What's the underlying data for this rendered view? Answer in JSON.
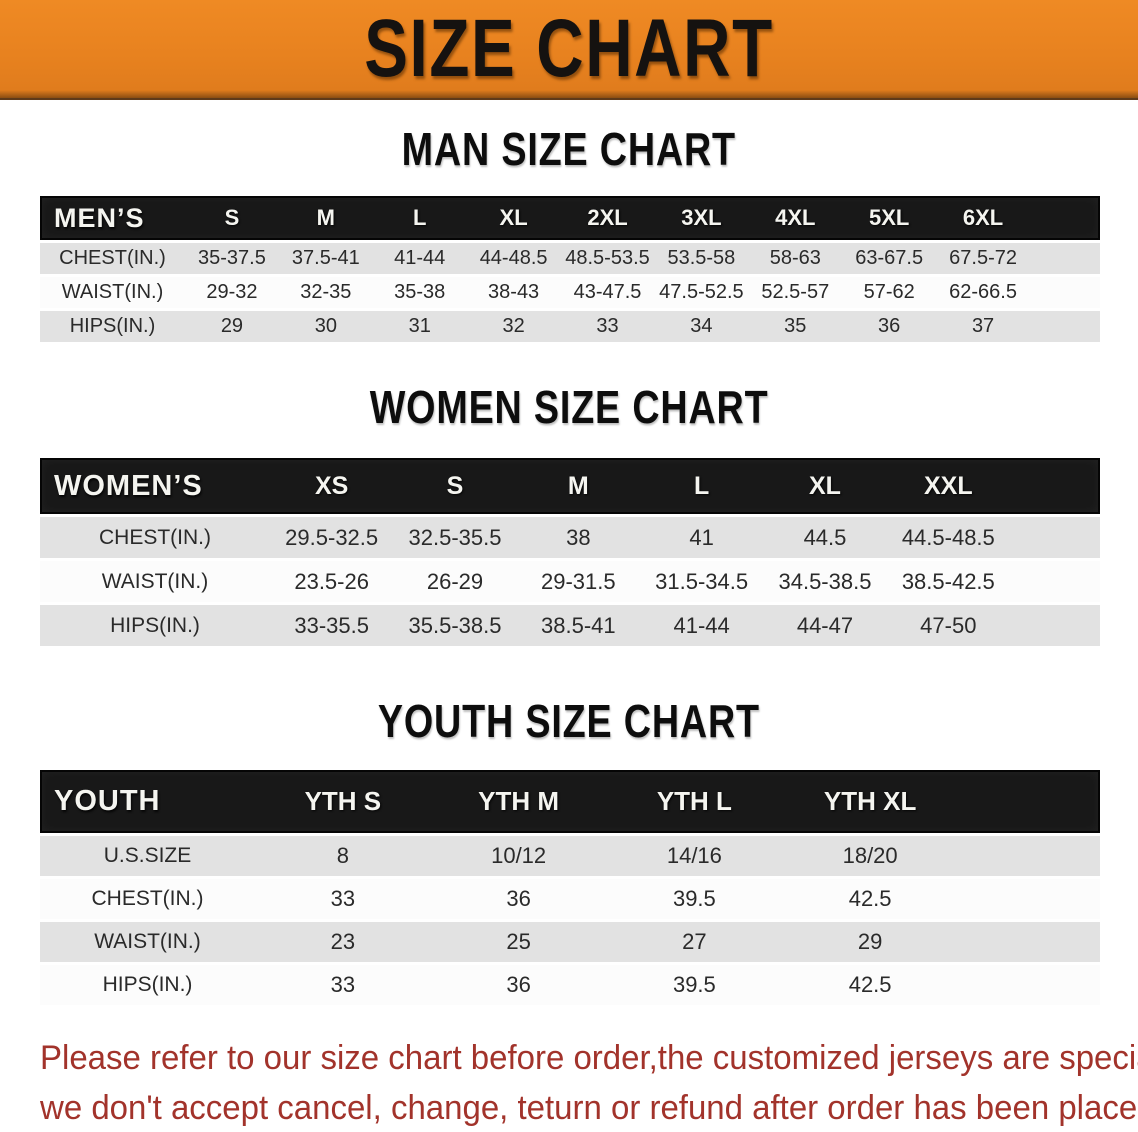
{
  "banner": {
    "title": "SIZE CHART"
  },
  "colors": {
    "banner_orange": "#E8821F",
    "header_black": "#181818",
    "row_gray": "#E2E2E2",
    "footer_red": "#A2332B"
  },
  "men": {
    "heading": "MAN SIZE CHART",
    "corner_label": "MEN’S",
    "columns": [
      "S",
      "M",
      "L",
      "XL",
      "2XL",
      "3XL",
      "4XL",
      "5XL",
      "6XL"
    ],
    "rows": [
      {
        "label": "CHEST(IN.)",
        "values": [
          "35-37.5",
          "37.5-41",
          "41-44",
          "44-48.5",
          "48.5-53.5",
          "53.5-58",
          "58-63",
          "63-67.5",
          "67.5-72"
        ]
      },
      {
        "label": "WAIST(IN.)",
        "values": [
          "29-32",
          "32-35",
          "35-38",
          "38-43",
          "43-47.5",
          "47.5-52.5",
          "52.5-57",
          "57-62",
          "62-66.5"
        ]
      },
      {
        "label": "HIPS(IN.)",
        "values": [
          "29",
          "30",
          "31",
          "32",
          "33",
          "34",
          "35",
          "36",
          "37"
        ]
      }
    ]
  },
  "women": {
    "heading": "WOMEN SIZE CHART",
    "corner_label": "WOMEN’S",
    "columns": [
      "XS",
      "S",
      "M",
      "L",
      "XL",
      "XXL"
    ],
    "rows": [
      {
        "label": "CHEST(IN.)",
        "values": [
          "29.5-32.5",
          "32.5-35.5",
          "38",
          "41",
          "44.5",
          "44.5-48.5"
        ]
      },
      {
        "label": "WAIST(IN.)",
        "values": [
          "23.5-26",
          "26-29",
          "29-31.5",
          "31.5-34.5",
          "34.5-38.5",
          "38.5-42.5"
        ]
      },
      {
        "label": "HIPS(IN.)",
        "values": [
          "33-35.5",
          "35.5-38.5",
          "38.5-41",
          "41-44",
          "44-47",
          "47-50"
        ]
      }
    ]
  },
  "youth": {
    "heading": "YOUTH SIZE CHART",
    "corner_label": "YOUTH",
    "columns": [
      "YTH S",
      "YTH M",
      "YTH L",
      "YTH XL"
    ],
    "rows": [
      {
        "label": "U.S.SIZE",
        "values": [
          "8",
          "10/12",
          "14/16",
          "18/20"
        ]
      },
      {
        "label": "CHEST(IN.)",
        "values": [
          "33",
          "36",
          "39.5",
          "42.5"
        ]
      },
      {
        "label": "WAIST(IN.)",
        "values": [
          "23",
          "25",
          "27",
          "29"
        ]
      },
      {
        "label": "HIPS(IN.)",
        "values": [
          "33",
          "36",
          "39.5",
          "42.5"
        ]
      }
    ]
  },
  "footer": {
    "line1": "Please refer to our size chart before order,the customized jerseys are special products,",
    "line2": "we don't accept cancel, change, teturn or refund after order has been placed!"
  }
}
